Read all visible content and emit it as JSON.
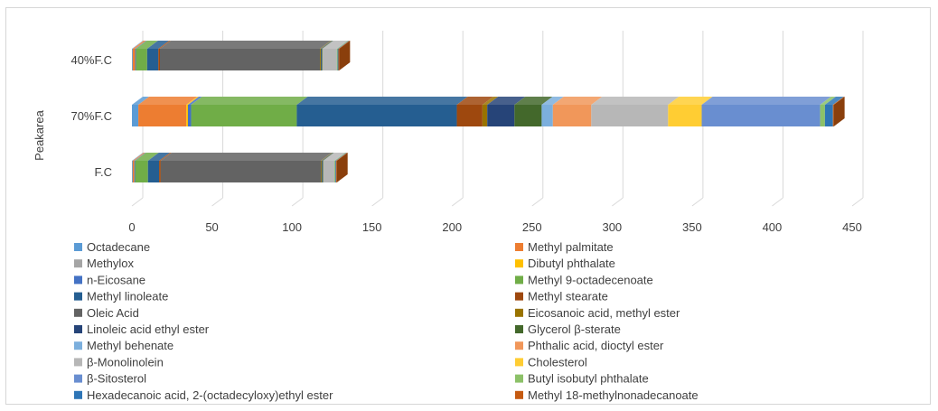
{
  "chart_data": {
    "type": "bar",
    "orientation": "horizontal",
    "stacked": true,
    "three_d": true,
    "ylabel": "Peakarea",
    "xlabel": "",
    "categories": [
      "F.C",
      "70%F.C",
      "40%F.C"
    ],
    "xlim": [
      0,
      450
    ],
    "xticks": [
      0,
      50,
      100,
      150,
      200,
      250,
      300,
      350,
      400,
      450
    ],
    "grid": true,
    "legend_position": "bottom",
    "series": [
      {
        "name": "Octadecane",
        "color": "#5b9bd5",
        "values": [
          0.5,
          4,
          0.5
        ]
      },
      {
        "name": "Methyl palmitate",
        "color": "#ed7d31",
        "values": [
          1,
          30,
          1.5
        ]
      },
      {
        "name": "Methylox",
        "color": "#a5a5a5",
        "values": [
          0,
          0,
          0
        ]
      },
      {
        "name": "Dibutyl phthalate",
        "color": "#ffc000",
        "values": [
          0,
          1,
          0
        ]
      },
      {
        "name": "n-Eicosane",
        "color": "#4472c4",
        "values": [
          0.5,
          2,
          0.5
        ]
      },
      {
        "name": "Methyl 9-octadecenoate",
        "color": "#70ad47",
        "values": [
          8,
          66,
          7
        ]
      },
      {
        "name": "Methyl linoleate",
        "color": "#255e91",
        "values": [
          7,
          100,
          7
        ]
      },
      {
        "name": "Methyl stearate",
        "color": "#9e480e",
        "values": [
          1,
          16,
          1
        ]
      },
      {
        "name": "Oleic Acid",
        "color": "#636363",
        "values": [
          100,
          0,
          100
        ]
      },
      {
        "name": "Eicosanoic acid, methyl ester",
        "color": "#997300",
        "values": [
          0.5,
          3,
          0.5
        ]
      },
      {
        "name": "Linoleic acid ethyl ester",
        "color": "#264478",
        "values": [
          0.5,
          17,
          0.5
        ]
      },
      {
        "name": "Glycerol β-sterate",
        "color": "#43682b",
        "values": [
          0.5,
          17,
          0.5
        ]
      },
      {
        "name": "Methyl behenate",
        "color": "#7cafdd",
        "values": [
          0,
          7,
          0
        ]
      },
      {
        "name": "Phthalic acid, dioctyl ester",
        "color": "#f1975a",
        "values": [
          0,
          24,
          0
        ]
      },
      {
        "name": "β-Monolinolein",
        "color": "#b7b7b7",
        "values": [
          7,
          48,
          9
        ]
      },
      {
        "name": "Cholesterol",
        "color": "#ffcd33",
        "values": [
          0,
          21,
          0
        ]
      },
      {
        "name": "β-Sitosterol",
        "color": "#698ed0",
        "values": [
          0,
          74,
          0
        ]
      },
      {
        "name": "Butyl isobutyl phthalate",
        "color": "#8cc168",
        "values": [
          0.5,
          3,
          0.5
        ]
      },
      {
        "name": "Hexadecanoic acid, 2-(octadecyloxy)ethyl ester",
        "color": "#2e75b6",
        "values": [
          0.5,
          5,
          0.5
        ]
      },
      {
        "name": "Methyl 18-methylnonadecanoate",
        "color": "#c55a11",
        "values": [
          0.5,
          0.5,
          0.5
        ]
      }
    ]
  }
}
